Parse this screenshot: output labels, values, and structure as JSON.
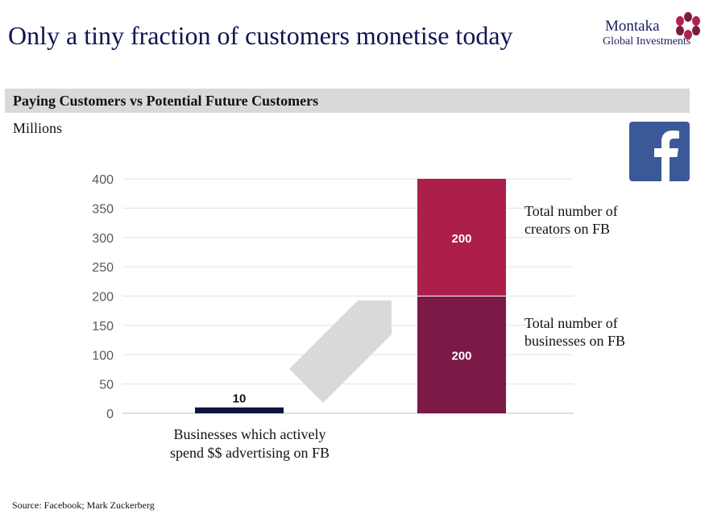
{
  "header": {
    "title": "Only a tiny fraction of customers monetise today",
    "logo_line1": "Montaka",
    "logo_line2": "Global Investments"
  },
  "banner": {
    "text": "Paying Customers vs Potential Future Customers"
  },
  "units_label": "Millions",
  "source": "Source: Facebook; Mark Zuckerberg",
  "icons": {
    "brand": "facebook-logo-icon",
    "arrow": "up-right-arrow-icon"
  },
  "chart_data": {
    "type": "bar",
    "stacked": true,
    "ylim": [
      0,
      400
    ],
    "yticks": [
      "0",
      "50",
      "100",
      "150",
      "200",
      "250",
      "300",
      "350",
      "400"
    ],
    "grid": true,
    "categories": [
      "Businesses which actively\nspend $$ advertising on FB",
      ""
    ],
    "series": [
      {
        "name": "Total number of businesses on FB",
        "values": [
          10,
          200
        ],
        "labels": [
          "10",
          "200"
        ],
        "colors": [
          "#0e1244",
          "#7c1946"
        ]
      },
      {
        "name": "Total number of creators on FB",
        "values": [
          0,
          200
        ],
        "labels": [
          "",
          "200"
        ],
        "colors": [
          "#ad1f4b",
          "#ad1f4b"
        ]
      }
    ],
    "annotations": [
      "Total number of\ncreators on FB",
      "Total number of\nbusinesses on FB"
    ]
  }
}
